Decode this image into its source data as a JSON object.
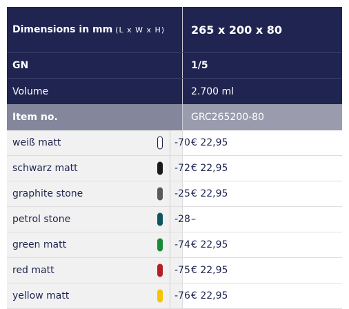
{
  "header": {
    "dimensions_label": "Dimensions in mm",
    "dimensions_unit": "(L x W x H)",
    "dimensions_value": "265 x 200 x 80",
    "gn_label": "GN",
    "gn_value": "1/5",
    "volume_label": "Volume",
    "volume_value": "2.700 ml",
    "item_label": "Item no.",
    "item_value": "GRC265200-80"
  },
  "items": [
    {
      "name": "weiß matt",
      "color": "#ffffff",
      "code": "-70",
      "price": "€ 22,95"
    },
    {
      "name": "schwarz matt",
      "color": "#1a1a1a",
      "code": "-72",
      "price": "€ 22,95"
    },
    {
      "name": "graphite stone",
      "color": "#5a5a5a",
      "code": "-25",
      "price": "€ 22,95"
    },
    {
      "name": "petrol stone",
      "color": "#0f5660",
      "code": "-28",
      "price": "–"
    },
    {
      "name": "green matt",
      "color": "#1a8a35",
      "code": "-74",
      "price": "€ 22,95"
    },
    {
      "name": "red matt",
      "color": "#b51f24",
      "code": "-75",
      "price": "€ 22,95"
    },
    {
      "name": "yellow matt",
      "color": "#f5c400",
      "code": "-76",
      "price": "€ 22,95"
    }
  ]
}
